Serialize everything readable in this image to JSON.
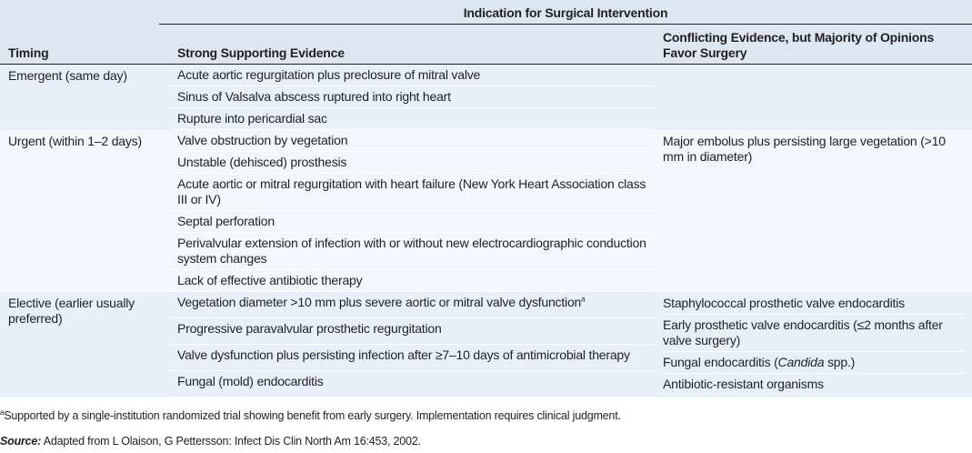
{
  "header": {
    "group_label": "Indication for Surgical Intervention",
    "col_timing": "Timing",
    "col_strong": "Strong Supporting Evidence",
    "col_conflicting": "Conflicting Evidence, but Majority of Opinions Favor Surgery"
  },
  "rows": [
    {
      "timing": "Emergent (same day)",
      "strong": [
        "Acute aortic regurgitation plus preclosure of mitral valve",
        "Sinus of Valsalva abscess ruptured into right heart",
        "Rupture into pericardial sac"
      ],
      "conflicting": []
    },
    {
      "timing": "Urgent (within 1–2 days)",
      "strong": [
        "Valve obstruction by vegetation",
        "Unstable (dehisced) prosthesis",
        "Acute aortic or mitral regurgitation with heart failure (New York Heart Association class III or IV)",
        "Septal perforation",
        "Perivalvular extension of infection with or without new electrocardiographic conduction system changes",
        "Lack of effective antibiotic therapy"
      ],
      "conflicting": [
        "Major embolus plus persisting large vegetation (>10 mm in diameter)"
      ]
    },
    {
      "timing": "Elective (earlier usually preferred)",
      "strong": [
        "Vegetation diameter >10 mm plus severe aortic or mitral valve dysfunction",
        "Progressive paravalvular prosthetic regurgitation",
        "Valve dysfunction plus persisting infection after ≥7–10 days of antimicrobial therapy",
        "Fungal (mold) endocarditis"
      ],
      "strong_first_footnote_mark": "a",
      "conflicting": [
        "Staphylococcal prosthetic valve endocarditis",
        "Early prosthetic valve endocarditis (≤2 months after valve surgery)",
        "Fungal endocarditis (Candida spp.)",
        "Antibiotic-resistant organisms"
      ]
    }
  ],
  "footnote": {
    "mark": "a",
    "text": "Supported by a single-institution randomized trial showing benefit from early surgery. Implementation requires clinical judgment."
  },
  "source": {
    "label": "Source:",
    "text": " Adapted from L Olaison, G Pettersson: Infect Dis Clin North Am 16:453, 2002."
  }
}
